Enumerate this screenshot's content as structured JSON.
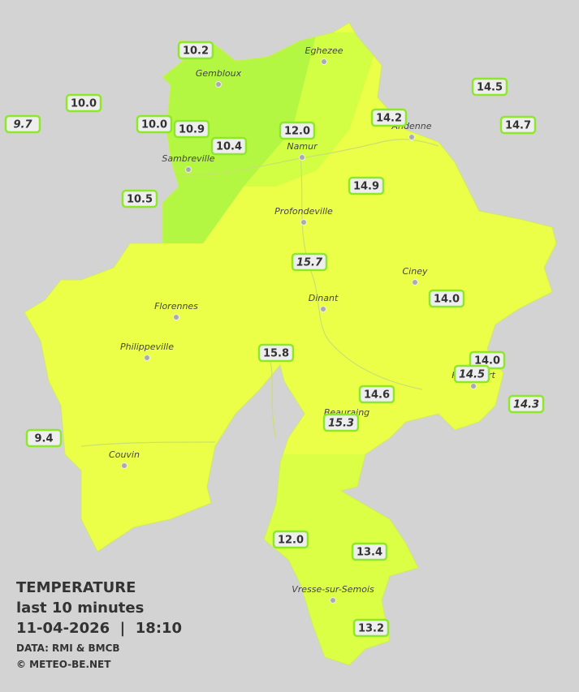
{
  "legend": {
    "title": "TEMPERATURE",
    "subtitle": "last 10 minutes",
    "datetime": "11-04-2026  |  18:10",
    "source": "DATA: RMI & BMCB",
    "credit": "© METEO-BE.NET"
  },
  "stations": [
    {
      "label": "10.2",
      "italic": false
    },
    {
      "label": "10.0",
      "italic": false
    },
    {
      "label": "9.7",
      "italic": true
    },
    {
      "label": "10.0",
      "italic": false
    },
    {
      "label": "10.9",
      "italic": false
    },
    {
      "label": "10.4",
      "italic": false
    },
    {
      "label": "12.0",
      "italic": false
    },
    {
      "label": "14.2",
      "italic": false
    },
    {
      "label": "14.5",
      "italic": false
    },
    {
      "label": "14.7",
      "italic": false
    },
    {
      "label": "10.5",
      "italic": false
    },
    {
      "label": "14.9",
      "italic": false
    },
    {
      "label": "15.7",
      "italic": true
    },
    {
      "label": "14.0",
      "italic": false
    },
    {
      "label": "15.8",
      "italic": false
    },
    {
      "label": "14.0",
      "italic": false
    },
    {
      "label": "14.5",
      "italic": true
    },
    {
      "label": "14.6",
      "italic": false
    },
    {
      "label": "14.3",
      "italic": true
    },
    {
      "label": "15.3",
      "italic": true
    },
    {
      "label": "9.4",
      "italic": false
    },
    {
      "label": "12.0",
      "italic": false
    },
    {
      "label": "13.4",
      "italic": false
    },
    {
      "label": "13.2",
      "italic": false
    }
  ],
  "cities": [
    "Eghezee",
    "Gembloux",
    "Andenne",
    "Namur",
    "Sambreville",
    "Profondeville",
    "Ciney",
    "Dinant",
    "Florennes",
    "Philippeville",
    "Beauraing",
    "Rochefort",
    "Couvin",
    "Vresse-sur-Semois"
  ]
}
